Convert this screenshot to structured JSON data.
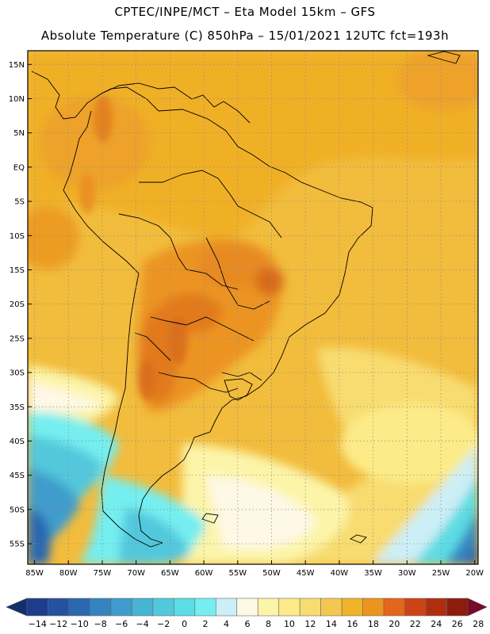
{
  "header": {
    "line1": "CPTEC/INPE/MCT –  Eta Model 15km – GFS",
    "line2": "Absolute Temperature (C) 850hPa – 15/01/2021 12UTC fct=193h"
  },
  "map": {
    "lon_range": [
      -86,
      -19.5
    ],
    "lat_range": [
      -58,
      17
    ],
    "lat_ticks": [
      "15N",
      "10N",
      "5N",
      "EQ",
      "5S",
      "10S",
      "15S",
      "20S",
      "25S",
      "30S",
      "35S",
      "40S",
      "45S",
      "50S",
      "55S"
    ],
    "lat_values": [
      15,
      10,
      5,
      0,
      -5,
      -10,
      -15,
      -20,
      -25,
      -30,
      -35,
      -40,
      -45,
      -50,
      -55
    ],
    "lon_ticks": [
      "85W",
      "80W",
      "75W",
      "70W",
      "65W",
      "60W",
      "55W",
      "50W",
      "45W",
      "40W",
      "35W",
      "30W",
      "25W",
      "20W"
    ],
    "lon_values": [
      -85,
      -80,
      -75,
      -70,
      -65,
      -60,
      -55,
      -50,
      -45,
      -40,
      -35,
      -30,
      -25,
      -20
    ]
  },
  "colorbar": {
    "labels": [
      "-14",
      "-12",
      "-10",
      "-8",
      "-6",
      "-4",
      "-2",
      "0",
      "2",
      "4",
      "6",
      "8",
      "10",
      "12",
      "14",
      "16",
      "18",
      "20",
      "22",
      "24",
      "26",
      "28"
    ],
    "colors": [
      "#1e3c8c",
      "#2452a0",
      "#2a68b0",
      "#3584c0",
      "#3f9ccc",
      "#48b4d4",
      "#52c8dc",
      "#5cdce4",
      "#74eef0",
      "#cceef6",
      "#fef8e6",
      "#fcf4a8",
      "#fceb88",
      "#f8dc70",
      "#f4c850",
      "#f0b428",
      "#ec9420",
      "#e4661a",
      "#cc4416",
      "#b02e10",
      "#8c1c0c"
    ],
    "end_colors": {
      "low": "#14306c",
      "high": "#780a26"
    }
  }
}
